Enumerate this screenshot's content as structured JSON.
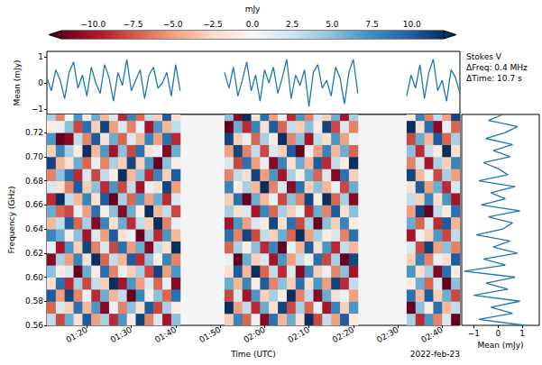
{
  "chart_data": [
    {
      "type": "heatmap",
      "title": "Stokes V",
      "annotations": [
        "ΔFreq: 0.4 MHz",
        "ΔTime: 10.7 s",
        "2022-feb-23"
      ],
      "xlabel": "Time (UTC)",
      "ylabel": "Frequency (GHz)",
      "x": [
        72,
        74,
        76,
        78,
        80,
        82,
        84,
        86,
        88,
        90,
        92,
        94,
        96,
        98,
        100,
        112,
        114,
        116,
        118,
        120,
        122,
        124,
        126,
        128,
        130,
        132,
        134,
        136,
        138,
        140,
        153,
        155,
        157,
        159,
        161,
        163
      ],
      "y": [
        0.565,
        0.575,
        0.585,
        0.595,
        0.605,
        0.615,
        0.625,
        0.635,
        0.645,
        0.655,
        0.665,
        0.675,
        0.685,
        0.695,
        0.705,
        0.715,
        0.725,
        0.735
      ],
      "values": [
        [
          3,
          -7,
          10,
          -2,
          5,
          -11,
          1,
          8,
          -4,
          6,
          -9,
          2,
          -6,
          11,
          -3,
          7,
          -1,
          4
        ],
        [
          -8,
          2,
          -5,
          9,
          -1,
          4,
          -10,
          6,
          3,
          -7,
          12,
          -2,
          5,
          -4,
          8,
          -12,
          1,
          -6
        ],
        [
          6,
          -3,
          11,
          -9,
          2,
          -5,
          7,
          -1,
          10,
          -8,
          3,
          -6,
          9,
          -2,
          4,
          -11,
          5,
          0
        ],
        [
          -2,
          9,
          -6,
          4,
          -12,
          8,
          -3,
          5,
          -7,
          1,
          -4,
          10,
          -9,
          6,
          -1,
          3,
          -8,
          7
        ],
        [
          10,
          -4,
          1,
          -8,
          6,
          -2,
          11,
          -10,
          4,
          -5,
          8,
          -3,
          2,
          -7,
          12,
          -6,
          9,
          -1
        ],
        [
          -5,
          7,
          -9,
          3,
          -1,
          12,
          -6,
          2,
          -11,
          9,
          -2,
          5,
          -8,
          1,
          -4,
          10,
          -3,
          6
        ],
        [
          4,
          -11,
          6,
          -3,
          9,
          -7,
          2,
          -5,
          8,
          -1,
          10,
          -9,
          3,
          -6,
          7,
          -2,
          11,
          -4
        ],
        [
          -9,
          1,
          -4,
          12,
          -6,
          3,
          -8,
          10,
          -2,
          5,
          -12,
          7,
          -1,
          4,
          -10,
          6,
          -5,
          2
        ],
        [
          7,
          -6,
          3,
          -10,
          1,
          -4,
          9,
          -2,
          6,
          -11,
          4,
          -8,
          12,
          -3,
          5,
          -7,
          2,
          -9
        ],
        [
          -1,
          5,
          -12,
          7,
          -3,
          10,
          -5,
          1,
          -9,
          6,
          -7,
          3,
          -4,
          11,
          -8,
          2,
          -6,
          8
        ],
        [
          11,
          -2,
          8,
          -5,
          4,
          -9,
          6,
          -12,
          3,
          -1,
          7,
          -10,
          5,
          -3,
          9,
          -4,
          1,
          -7
        ],
        [
          -6,
          10,
          -1,
          2,
          -8,
          5,
          -11,
          4,
          -3,
          12,
          -5,
          1,
          -9,
          7,
          -2,
          8,
          -10,
          3
        ],
        [
          2,
          -8,
          5,
          -7,
          11,
          -1,
          3,
          -9,
          12,
          -4,
          6,
          -2,
          8,
          -12,
          1,
          -5,
          7,
          -3
        ],
        [
          -10,
          4,
          -7,
          1,
          -5,
          8,
          -2,
          7,
          -6,
          3,
          -9,
          11,
          -3,
          5,
          -11,
          9,
          -4,
          10
        ],
        [
          5,
          -1,
          9,
          -11,
          7,
          -6,
          12,
          -4,
          1,
          -8,
          2,
          -5,
          10,
          -1,
          6,
          -9,
          3,
          -2
        ],
        [
          -3,
          12,
          -8,
          6,
          -2,
          1,
          -7,
          9,
          -10,
          4,
          -3,
          8,
          -6,
          2,
          -5,
          11,
          -12,
          5
        ],
        [
          8,
          -5,
          2,
          -4,
          10,
          -12,
          4,
          -6,
          7,
          -2,
          9,
          -1,
          3,
          -8,
          11,
          -3,
          6,
          -11
        ],
        [
          -7,
          3,
          -10,
          8,
          -4,
          6,
          -1,
          11,
          -5,
          2,
          -12,
          4,
          -2,
          9,
          -6,
          1,
          -9,
          12
        ],
        [
          1,
          -9,
          7,
          -1,
          12,
          -3,
          5,
          -8,
          2,
          -10,
          6,
          -4,
          11,
          -5,
          3,
          -7,
          8,
          -2
        ],
        [
          -11,
          6,
          -3,
          10,
          -7,
          2,
          -9,
          3,
          -1,
          8,
          -4,
          12,
          -5,
          1,
          -8,
          4,
          -2,
          9
        ],
        [
          9,
          -2,
          4,
          -6,
          3,
          -10,
          8,
          -3,
          11,
          -7,
          1,
          -6,
          7,
          -11,
          2,
          -1,
          10,
          -5
        ],
        [
          -4,
          11,
          -1,
          5,
          -9,
          7,
          -12,
          6,
          -2,
          4,
          -8,
          2,
          -10,
          8,
          -3,
          12,
          -7,
          1
        ],
        [
          6,
          -8,
          12,
          -3,
          2,
          -5,
          1,
          -7,
          9,
          -3,
          5,
          -11,
          4,
          -2,
          10,
          -6,
          3,
          -9
        ],
        [
          -2,
          4,
          -6,
          9,
          -11,
          3,
          -4,
          12,
          -8,
          1,
          -6,
          9,
          -1,
          6,
          -12,
          5,
          -3,
          7
        ],
        [
          12,
          -7,
          3,
          -2,
          8,
          -1,
          10,
          -5,
          4,
          -9,
          11,
          -3,
          6,
          -4,
          1,
          -10,
          5,
          -6
        ],
        [
          -8,
          1,
          -11,
          7,
          -3,
          9,
          -2,
          4,
          -12,
          6,
          -1,
          5,
          -7,
          10,
          -5,
          3,
          -1,
          2
        ],
        [
          3,
          -10,
          6,
          -5,
          1,
          -8,
          7,
          -1,
          5,
          -6,
          12,
          -4,
          2,
          -9,
          8,
          -2,
          11,
          -3
        ],
        [
          -5,
          8,
          -2,
          11,
          -6,
          4,
          -9,
          2,
          -3,
          10,
          -7,
          1,
          -11,
          3,
          -4,
          7,
          -8,
          6
        ],
        [
          10,
          -3,
          1,
          -9,
          5,
          -12,
          3,
          -6,
          8,
          -2,
          4,
          -8,
          9,
          -1,
          6,
          -5,
          2,
          -10
        ],
        [
          -1,
          7,
          -5,
          3,
          -10,
          11,
          -4,
          9,
          -1,
          5,
          -11,
          6,
          -3,
          12,
          -7,
          1,
          -6,
          4
        ],
        [
          4,
          -12,
          9,
          -1,
          7,
          -3,
          2,
          -10,
          6,
          -5,
          3,
          -2,
          11,
          -6,
          5,
          -8,
          12,
          -1
        ],
        [
          -9,
          5,
          -4,
          6,
          -2,
          8,
          -8,
          1,
          -7,
          11,
          -3,
          10,
          -4,
          2,
          -9,
          6,
          -2,
          8
        ],
        [
          7,
          -1,
          10,
          -7,
          4,
          -6,
          11,
          -3,
          2,
          -12,
          8,
          -5,
          1,
          -10,
          3,
          -4,
          9,
          -6
        ],
        [
          -6,
          9,
          -3,
          2,
          -11,
          1,
          -5,
          7,
          -9,
          3,
          -2,
          6,
          -8,
          4,
          -1,
          10,
          -11,
          3
        ],
        [
          2,
          -4,
          6,
          -12,
          9,
          -2,
          5,
          -8,
          10,
          -1,
          7,
          -9,
          4,
          -3,
          12,
          -7,
          1,
          -5
        ],
        [
          -12,
          3,
          -8,
          5,
          -1,
          10,
          -6,
          3,
          -4,
          9,
          -10,
          2,
          -5,
          8,
          -2,
          4,
          -7,
          11
        ]
      ],
      "xlim": [
        71,
        164
      ],
      "xticks": [
        {
          "value": 80,
          "label": "01:20"
        },
        {
          "value": 90,
          "label": "01:30"
        },
        {
          "value": 100,
          "label": "01:40"
        },
        {
          "value": 110,
          "label": "01:50"
        },
        {
          "value": 120,
          "label": "02:00"
        },
        {
          "value": 130,
          "label": "02:10"
        },
        {
          "value": 140,
          "label": "02:20"
        },
        {
          "value": 150,
          "label": "02:30"
        },
        {
          "value": 160,
          "label": "02:40"
        }
      ],
      "ylim": [
        0.56,
        0.735
      ],
      "yticks": [
        0.56,
        0.58,
        {
          "value": 0.6,
          "label": "0.60"
        },
        0.62,
        0.64,
        0.66,
        0.68,
        {
          "value": 0.7,
          "label": "0.70"
        },
        0.72
      ],
      "colorbar": {
        "label": "mJy",
        "range": [
          -12,
          12
        ],
        "ticks": [
          {
            "value": -10,
            "label": "−10.0"
          },
          {
            "value": -7.5,
            "label": "−7.5"
          },
          {
            "value": -5,
            "label": "−5.0"
          },
          {
            "value": -2.5,
            "label": "−2.5"
          },
          {
            "value": 0,
            "label": "0.0"
          },
          {
            "value": 2.5,
            "label": "2.5"
          },
          {
            "value": 5,
            "label": "5.0"
          },
          {
            "value": 7.5,
            "label": "7.5"
          },
          {
            "value": 10,
            "label": "10.0"
          }
        ]
      }
    },
    {
      "type": "line",
      "ylabel": "Mean (mJy)",
      "x": [
        71,
        72,
        73,
        74,
        75,
        76,
        77,
        78,
        79,
        80,
        81,
        82,
        83,
        84,
        85,
        86,
        87,
        88,
        89,
        90,
        91,
        92,
        93,
        94,
        95,
        96,
        97,
        98,
        99,
        100,
        101,
        106,
        111,
        112,
        113,
        114,
        115,
        116,
        117,
        118,
        119,
        120,
        121,
        122,
        123,
        124,
        125,
        126,
        127,
        128,
        129,
        130,
        131,
        132,
        133,
        134,
        135,
        136,
        137,
        138,
        139,
        140,
        141,
        146,
        152,
        153,
        154,
        155,
        156,
        157,
        158,
        159,
        160,
        161,
        162,
        163,
        164
      ],
      "values": [
        0.2,
        -0.3,
        0.5,
        0.1,
        -0.6,
        0.4,
        0.8,
        -0.2,
        0.3,
        -0.5,
        0.6,
        0.0,
        -0.4,
        0.7,
        0.2,
        -0.7,
        0.4,
        -0.1,
        0.9,
        -0.3,
        0.1,
        0.5,
        -0.6,
        0.3,
        0.6,
        -0.2,
        0.0,
        0.4,
        -0.5,
        0.7,
        -0.3,
        null,
        0.4,
        -0.2,
        0.6,
        -0.5,
        0.1,
        0.8,
        -0.3,
        0.3,
        -0.7,
        0.5,
        0.0,
        0.6,
        -0.4,
        0.2,
        0.9,
        -0.6,
        0.3,
        -0.1,
        0.5,
        -0.9,
        0.4,
        0.7,
        -0.2,
        0.1,
        -0.5,
        0.6,
        0.2,
        -0.8,
        0.4,
        0.9,
        -0.4,
        null,
        -0.5,
        0.3,
        -0.2,
        0.7,
        -0.6,
        0.4,
        0.9,
        -0.3,
        0.1,
        -0.7,
        0.5,
        0.2,
        -0.4
      ],
      "xlim": [
        71,
        164
      ],
      "ylim": [
        -1.2,
        1.2
      ],
      "yticks": [
        {
          "value": -1,
          "label": "−1"
        },
        0,
        1
      ],
      "color": "#1f77b4",
      "tick_labels": "y"
    },
    {
      "type": "line",
      "orientation": "horizontal",
      "xlabel": "Mean (mJy)",
      "y": [
        0.56,
        0.565,
        0.57,
        0.575,
        0.58,
        0.585,
        0.59,
        0.595,
        0.6,
        0.605,
        0.61,
        0.615,
        0.62,
        0.625,
        0.63,
        0.635,
        0.64,
        0.645,
        0.65,
        0.655,
        0.66,
        0.665,
        0.67,
        0.675,
        0.68,
        0.685,
        0.69,
        0.695,
        0.7,
        0.705,
        0.71,
        0.715,
        0.72,
        0.725,
        0.73,
        0.735
      ],
      "values": [
        1.1,
        -0.8,
        0.6,
        -0.3,
        0.9,
        -1.0,
        0.4,
        -0.5,
        0.7,
        -1.4,
        0.3,
        -0.6,
        0.8,
        -0.2,
        0.5,
        -0.9,
        0.2,
        0.6,
        -0.4,
        0.9,
        -0.7,
        0.3,
        -0.3,
        0.7,
        -0.8,
        0.4,
        0.0,
        -0.6,
        0.5,
        -0.2,
        0.6,
        -0.5,
        0.3,
        0.8,
        -0.4,
        0.2
      ],
      "xlim": [
        -1.5,
        1.7
      ],
      "ylim": [
        0.56,
        0.735
      ],
      "xticks": [
        {
          "value": -1,
          "label": "−1"
        },
        0,
        1
      ],
      "color": "#1f77b4",
      "tick_labels": "x"
    }
  ]
}
